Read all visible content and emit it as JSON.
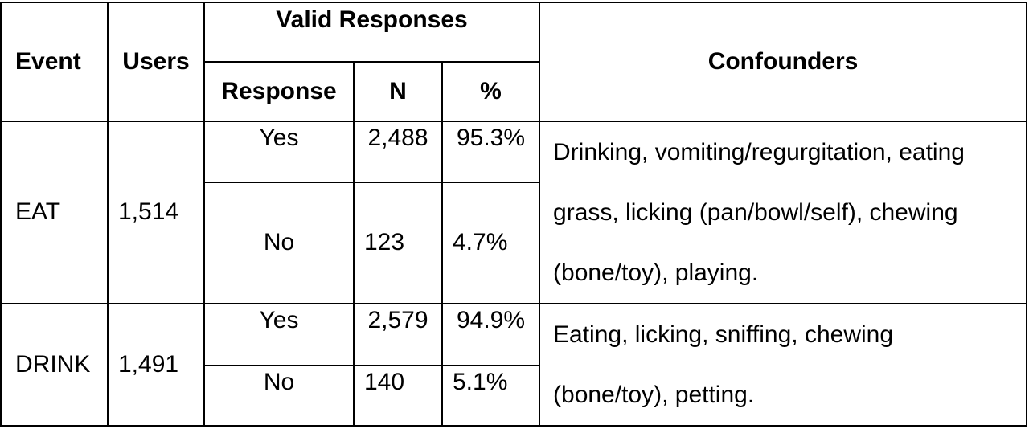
{
  "table": {
    "headers": {
      "event": "Event",
      "users": "Users",
      "valid_responses": "Valid Responses",
      "response": "Response",
      "n": "N",
      "percent": "%",
      "confounders": "Confounders"
    },
    "rows": [
      {
        "event": "EAT",
        "users": "1,514",
        "responses": [
          {
            "response": "Yes",
            "n": "2,488",
            "percent": "95.3%"
          },
          {
            "response": "No",
            "n": "123",
            "percent": "4.7%"
          }
        ],
        "confounders_lines": [
          "Drinking, vomiting/regurgitation, eating",
          "grass, licking (pan/bowl/self), chewing",
          "(bone/toy), playing."
        ]
      },
      {
        "event": "DRINK",
        "users": "1,491",
        "responses": [
          {
            "response": "Yes",
            "n": "2,579",
            "percent": "94.9%"
          },
          {
            "response": "No",
            "n": "140",
            "percent": "5.1%"
          }
        ],
        "confounders_lines": [
          "Eating, licking, sniffing, chewing",
          "(bone/toy), petting."
        ]
      }
    ]
  }
}
